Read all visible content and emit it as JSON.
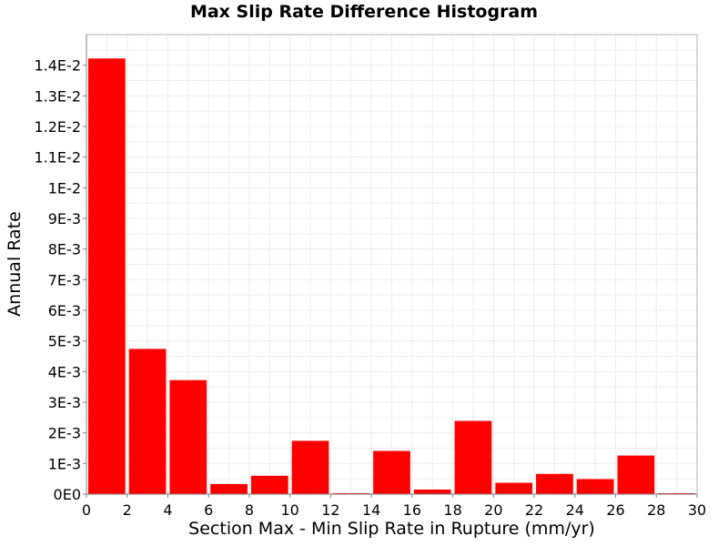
{
  "chart_data": {
    "type": "bar",
    "title": "Max Slip Rate Difference Histogram",
    "xlabel": "Section Max - Min Slip Rate in Rupture (mm/yr)",
    "ylabel": "Annual Rate",
    "xlim": [
      0,
      30
    ],
    "ylim": [
      0,
      0.015
    ],
    "grid": true,
    "bar_color": "#ff0000",
    "bin_width": 2,
    "x": [
      1,
      3,
      5,
      7,
      9,
      11,
      13,
      15,
      17,
      19,
      21,
      23,
      25,
      27,
      29
    ],
    "values": [
      0.01422,
      0.00474,
      0.00372,
      0.00033,
      0.0006,
      0.00174,
      2e-05,
      0.00141,
      0.00015,
      0.00239,
      0.00037,
      0.00066,
      0.00049,
      0.00126,
      3e-05
    ],
    "x_ticks": [
      "0",
      "2",
      "4",
      "6",
      "8",
      "10",
      "12",
      "14",
      "16",
      "18",
      "20",
      "22",
      "24",
      "26",
      "28",
      "30"
    ],
    "y_ticks": [
      "0E0",
      "1E-3",
      "2E-3",
      "3E-3",
      "4E-3",
      "5E-3",
      "6E-3",
      "7E-3",
      "8E-3",
      "9E-3",
      "1E-2",
      "1.1E-2",
      "1.2E-2",
      "1.3E-2",
      "1.4E-2"
    ]
  }
}
